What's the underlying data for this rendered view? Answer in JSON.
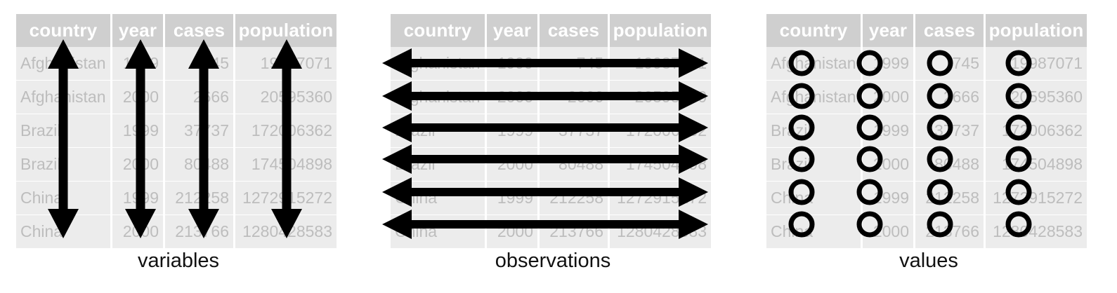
{
  "table": {
    "headers": [
      "country",
      "year",
      "cases",
      "population"
    ],
    "rows": [
      [
        "Afghanistan",
        "1999",
        "745",
        "19987071"
      ],
      [
        "Afghanistan",
        "2000",
        "2666",
        "20595360"
      ],
      [
        "Brazil",
        "1999",
        "37737",
        "172006362"
      ],
      [
        "Brazil",
        "2000",
        "80488",
        "174504898"
      ],
      [
        "China",
        "1999",
        "212258",
        "1272915272"
      ],
      [
        "China",
        "2000",
        "213766",
        "1280428583"
      ]
    ]
  },
  "panels": [
    {
      "caption": "variables"
    },
    {
      "caption": "observations"
    },
    {
      "caption": "values"
    }
  ],
  "colors": {
    "header_bg": "#cfcfcf",
    "cell_bg": "#ececec",
    "cell_text": "#bdbdbd",
    "mark": "#000000"
  }
}
